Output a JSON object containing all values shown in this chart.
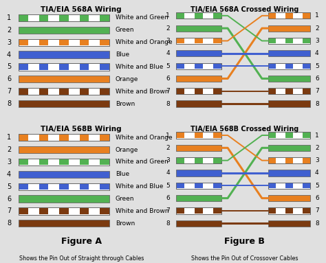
{
  "title_568A": "TIA/EIA 568A Wiring",
  "title_568B": "TIA/EIA 568B Wiring",
  "title_568A_cross": "TIA/EIA 568A Crossed Wiring",
  "title_568B_cross": "TIA/EIA 568B Crossed Wiring",
  "figure_a_label": "Figure A",
  "figure_b_label": "Figure B",
  "caption_a": "Shows the Pin Out of Straight through Cables",
  "caption_b": "Shows the Pin Out of Crossover Cables",
  "bg_color": "#e0e0e0",
  "border_color": "#999999",
  "568A_wires": [
    {
      "pin": 1,
      "label": "White and Green",
      "type": "striped",
      "color": "#52b152"
    },
    {
      "pin": 2,
      "label": "Green",
      "type": "solid",
      "color": "#52b152"
    },
    {
      "pin": 3,
      "label": "White and Orange",
      "type": "striped",
      "color": "#e88020"
    },
    {
      "pin": 4,
      "label": "Blue",
      "type": "solid",
      "color": "#4060d0"
    },
    {
      "pin": 5,
      "label": "White and Blue",
      "type": "striped",
      "color": "#4060d0"
    },
    {
      "pin": 6,
      "label": "Orange",
      "type": "solid",
      "color": "#e88020"
    },
    {
      "pin": 7,
      "label": "White and Brown",
      "type": "striped",
      "color": "#7b3a10"
    },
    {
      "pin": 8,
      "label": "Brown",
      "type": "solid",
      "color": "#7b3a10"
    }
  ],
  "568B_wires": [
    {
      "pin": 1,
      "label": "White and Orange",
      "type": "striped",
      "color": "#e88020"
    },
    {
      "pin": 2,
      "label": "Orange",
      "type": "solid",
      "color": "#e88020"
    },
    {
      "pin": 3,
      "label": "White and Green",
      "type": "striped",
      "color": "#52b152"
    },
    {
      "pin": 4,
      "label": "Blue",
      "type": "solid",
      "color": "#4060d0"
    },
    {
      "pin": 5,
      "label": "White and Blue",
      "type": "striped",
      "color": "#4060d0"
    },
    {
      "pin": 6,
      "label": "Green",
      "type": "solid",
      "color": "#52b152"
    },
    {
      "pin": 7,
      "label": "White and Brown",
      "type": "striped",
      "color": "#7b3a10"
    },
    {
      "pin": 8,
      "label": "Brown",
      "type": "solid",
      "color": "#7b3a10"
    }
  ],
  "cross_568A": [
    2,
    5,
    0,
    3,
    4,
    1,
    6,
    7
  ],
  "cross_568B": [
    2,
    5,
    0,
    3,
    4,
    1,
    6,
    7
  ]
}
